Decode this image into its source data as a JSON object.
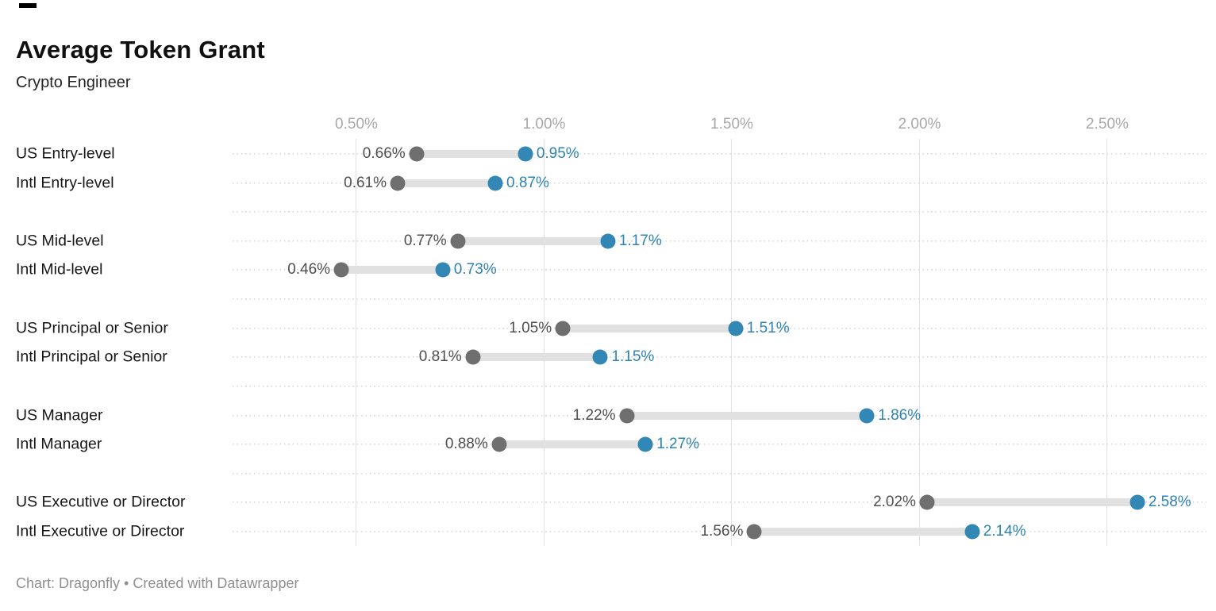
{
  "header": {
    "title": "Average Token Grant",
    "subtitle": "Crypto Engineer"
  },
  "footer": {
    "text": "Chart: Dragonfly • Created with Datawrapper"
  },
  "colors": {
    "low_dot": "#6f6f6f",
    "high_dot": "#3287b5",
    "connector_bar": "#e1e1e1",
    "low_value_label": "#4f4f4f",
    "high_value_label": "#2e83b2",
    "tick_label": "#a8a8a8",
    "grid_line": "#e0e0e0"
  },
  "chart_data": {
    "type": "dumbbell",
    "title": "Average Token Grant",
    "subtitle": "Crypto Engineer",
    "unit": "%",
    "x_domain": [
      0.1702,
      2.7643
    ],
    "x_ticks": [
      {
        "value": 0.5,
        "label": "0.50%"
      },
      {
        "value": 1.0,
        "label": "1.00%"
      },
      {
        "value": 1.5,
        "label": "1.50%"
      },
      {
        "value": 2.0,
        "label": "2.00%"
      },
      {
        "value": 2.5,
        "label": "2.50%"
      }
    ],
    "grid": true,
    "legend_position": "none",
    "n_slots": 14,
    "series": [
      {
        "name": "low",
        "color": "#6f6f6f"
      },
      {
        "name": "high",
        "color": "#3287b5"
      }
    ],
    "rows": [
      {
        "slot": 0,
        "label": "US Entry-level",
        "low": 0.66,
        "high": 0.95,
        "low_label": "0.66%",
        "high_label": "0.95%"
      },
      {
        "slot": 1,
        "label": "Intl Entry-level",
        "low": 0.61,
        "high": 0.87,
        "low_label": "0.61%",
        "high_label": "0.87%"
      },
      {
        "slot": 3,
        "label": "US Mid-level",
        "low": 0.77,
        "high": 1.17,
        "low_label": "0.77%",
        "high_label": "1.17%"
      },
      {
        "slot": 4,
        "label": "Intl Mid-level",
        "low": 0.46,
        "high": 0.73,
        "low_label": "0.46%",
        "high_label": "0.73%"
      },
      {
        "slot": 6,
        "label": "US Principal or Senior",
        "low": 1.05,
        "high": 1.51,
        "low_label": "1.05%",
        "high_label": "1.51%"
      },
      {
        "slot": 7,
        "label": "Intl Principal or Senior",
        "low": 0.81,
        "high": 1.15,
        "low_label": "0.81%",
        "high_label": "1.15%"
      },
      {
        "slot": 9,
        "label": "US Manager",
        "low": 1.22,
        "high": 1.86,
        "low_label": "1.22%",
        "high_label": "1.86%"
      },
      {
        "slot": 10,
        "label": "Intl Manager",
        "low": 0.88,
        "high": 1.27,
        "low_label": "0.88%",
        "high_label": "1.27%"
      },
      {
        "slot": 12,
        "label": "US Executive or Director",
        "low": 2.02,
        "high": 2.58,
        "low_label": "2.02%",
        "high_label": "2.58%"
      },
      {
        "slot": 13,
        "label": "Intl Executive or Director",
        "low": 1.56,
        "high": 2.14,
        "low_label": "1.56%",
        "high_label": "2.14%"
      }
    ]
  }
}
